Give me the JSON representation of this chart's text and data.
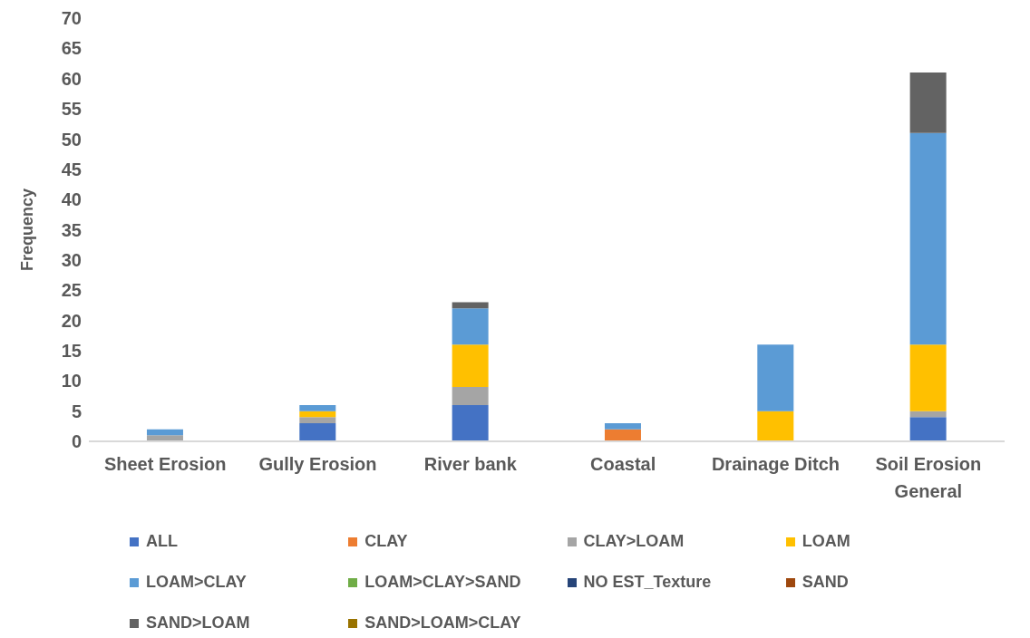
{
  "chart_data": {
    "type": "bar",
    "stacked": true,
    "ylabel": "Frequency",
    "ylim": [
      0,
      70
    ],
    "yticks": [
      0,
      5,
      10,
      15,
      20,
      25,
      30,
      35,
      40,
      45,
      50,
      55,
      60,
      65,
      70
    ],
    "grid": false,
    "legend": "bottom",
    "categories": [
      "Sheet Erosion",
      "Gully Erosion",
      "River bank",
      "Coastal",
      "Drainage Ditch",
      "Soil Erosion General"
    ],
    "series": [
      {
        "name": "ALL",
        "color": "#4472c4",
        "values": [
          0,
          3,
          6,
          0,
          0,
          4
        ]
      },
      {
        "name": "CLAY",
        "color": "#ed7d31",
        "values": [
          0,
          0,
          0,
          2,
          0,
          0
        ]
      },
      {
        "name": "CLAY>LOAM",
        "color": "#a5a5a5",
        "values": [
          1,
          1,
          3,
          0,
          0,
          1
        ]
      },
      {
        "name": "LOAM",
        "color": "#ffc000",
        "values": [
          0,
          1,
          7,
          0,
          5,
          11
        ]
      },
      {
        "name": "LOAM>CLAY",
        "color": "#5b9bd5",
        "values": [
          1,
          1,
          6,
          1,
          11,
          35
        ]
      },
      {
        "name": "LOAM>CLAY>SAND",
        "color": "#70ad47",
        "values": [
          0,
          0,
          0,
          0,
          0,
          0
        ]
      },
      {
        "name": "NO EST_Texture",
        "color": "#264478",
        "values": [
          0,
          0,
          0,
          0,
          0,
          0
        ]
      },
      {
        "name": "SAND",
        "color": "#9e480e",
        "values": [
          0,
          0,
          0,
          0,
          0,
          0
        ]
      },
      {
        "name": "SAND>LOAM",
        "color": "#636363",
        "values": [
          0,
          0,
          1,
          0,
          0,
          10
        ]
      },
      {
        "name": "SAND>LOAM>CLAY",
        "color": "#997300",
        "values": [
          0,
          0,
          0,
          0,
          0,
          0
        ]
      }
    ]
  }
}
